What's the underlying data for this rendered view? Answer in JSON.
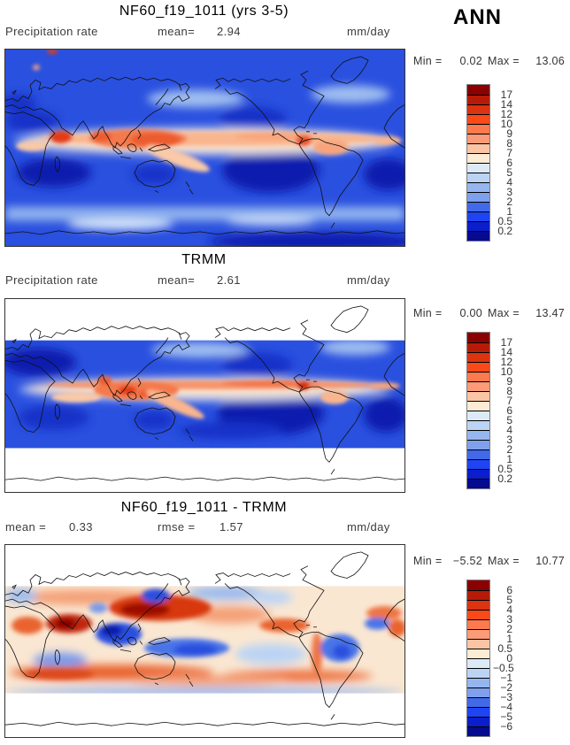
{
  "header": {
    "season": "ANN"
  },
  "panels": {
    "model": {
      "title": "NF60_f19_1011 (yrs 3-5)",
      "var_label": "Precipitation rate",
      "mean_label": "mean=",
      "mean": "2.94",
      "units": "mm/day",
      "min_label": "Min =",
      "min": "0.02",
      "max_label": "Max =",
      "max": "13.06",
      "colorbar": {
        "ticks": [
          "17",
          "14",
          "12",
          "10",
          "9",
          "8",
          "7",
          "6",
          "5",
          "4",
          "3",
          "2",
          "1",
          "0.5",
          "0.2"
        ],
        "colors": [
          "#8B0000",
          "#B71B07",
          "#DC3310",
          "#FB4A1A",
          "#FC7A4D",
          "#FB9B77",
          "#FBC4A4",
          "#FCEBD5",
          "#DCEAF8",
          "#BCD4F4",
          "#96B6EF",
          "#7FA0EC",
          "#4169E8",
          "#1F44F2",
          "#0A1ECC",
          "#050A8E"
        ]
      }
    },
    "obs": {
      "title": "TRMM",
      "var_label": "Precipitation rate",
      "mean_label": "mean=",
      "mean": "2.61",
      "units": "mm/day",
      "min_label": "Min =",
      "min": "0.00",
      "max_label": "Max =",
      "max": "13.47",
      "colorbar": {
        "ticks": [
          "17",
          "14",
          "12",
          "10",
          "9",
          "8",
          "7",
          "6",
          "5",
          "4",
          "3",
          "2",
          "1",
          "0.5",
          "0.2"
        ],
        "colors": [
          "#8B0000",
          "#B71B07",
          "#DC3310",
          "#FB4A1A",
          "#FC7A4D",
          "#FB9B77",
          "#FBC4A4",
          "#FCEBD5",
          "#DCEAF8",
          "#BCD4F4",
          "#96B6EF",
          "#7FA0EC",
          "#4169E8",
          "#1F44F2",
          "#0A1ECC",
          "#050A8E"
        ]
      }
    },
    "diff": {
      "title": "NF60_f19_1011 - TRMM",
      "mean_label": "mean =",
      "mean": "0.33",
      "rmse_label": "rmse =",
      "rmse": "1.57",
      "units": "mm/day",
      "min_label": "Min =",
      "min": "−5.52",
      "max_label": "Max =",
      "max": "10.77",
      "colorbar": {
        "ticks": [
          "6",
          "5",
          "4",
          "3",
          "2",
          "1",
          "0.5",
          "0",
          "−0.5",
          "−1",
          "−2",
          "−3",
          "−4",
          "−5",
          "−6"
        ],
        "colors": [
          "#8B0000",
          "#B71B07",
          "#DC3310",
          "#FB4A1A",
          "#FC7A4D",
          "#FB9B77",
          "#FBC4A4",
          "#FCEBD5",
          "#DCEAF8",
          "#BCD4F4",
          "#96B6EF",
          "#7FA0EC",
          "#4169E8",
          "#1F44F2",
          "#0A1ECC",
          "#050A8E"
        ]
      }
    }
  },
  "chart_data": [
    {
      "type": "heatmap",
      "title": "NF60_f19_1011 (yrs 3-5)",
      "variable": "Precipitation rate",
      "season": "ANN",
      "units": "mm/day",
      "projection": "global equirectangular, 0–360E, 90S–90N",
      "stats": {
        "mean": 2.94,
        "min": 0.02,
        "max": 13.06
      },
      "contour_levels": [
        0.2,
        0.5,
        1,
        2,
        3,
        4,
        5,
        6,
        7,
        8,
        9,
        10,
        12,
        14,
        17
      ],
      "palette_top_to_bottom": [
        "#8B0000",
        "#B71B07",
        "#DC3310",
        "#FB4A1A",
        "#FC7A4D",
        "#FB9B77",
        "#FBC4A4",
        "#FCEBD5",
        "#DCEAF8",
        "#BCD4F4",
        "#96B6EF",
        "#7FA0EC",
        "#4169E8",
        "#1F44F2",
        "#0A1ECC",
        "#050A8E"
      ],
      "features": [
        "high-rain ITCZ band across tropical Indian Ocean and Pacific with maxima over Arabian Sea, Maritime Continent warm pool and NW South America",
        "dry subtropical highs (dark blue) in SE Pacific, S Atlantic and S Indian Ocean",
        "light mid-latitude storm-track bands"
      ]
    },
    {
      "type": "heatmap",
      "title": "TRMM",
      "variable": "Precipitation rate",
      "season": "ANN",
      "units": "mm/day",
      "projection": "global equirectangular; data only ~50N–50S, white outside coverage",
      "stats": {
        "mean": 2.61,
        "min": 0.0,
        "max": 13.47
      },
      "contour_levels": [
        0.2,
        0.5,
        1,
        2,
        3,
        4,
        5,
        6,
        7,
        8,
        9,
        10,
        12,
        14,
        17
      ],
      "palette_top_to_bottom": [
        "#8B0000",
        "#B71B07",
        "#DC3310",
        "#FB4A1A",
        "#FC7A4D",
        "#FB9B77",
        "#FBC4A4",
        "#FCEBD5",
        "#DCEAF8",
        "#BCD4F4",
        "#96B6EF",
        "#7FA0EC",
        "#4169E8",
        "#1F44F2",
        "#0A1ECC",
        "#050A8E"
      ],
      "features": [
        "narrow sharp ITCZ across Pacific",
        "strong maxima over Maritime Continent and Panama Bight",
        "dark-blue dry zones over SE Pacific, S Atlantic and Sahara/Arabia"
      ]
    },
    {
      "type": "heatmap",
      "title": "NF60_f19_1011 - TRMM",
      "variable": "Precipitation rate difference",
      "season": "ANN",
      "units": "mm/day",
      "projection": "global equirectangular; difference only ~50N–50S, white outside coverage",
      "stats": {
        "mean": 0.33,
        "rmse": 1.57,
        "min": -5.52,
        "max": 10.77
      },
      "contour_levels": [
        -6,
        -5,
        -4,
        -3,
        -2,
        -1,
        -0.5,
        0,
        0.5,
        1,
        2,
        3,
        4,
        5,
        6
      ],
      "palette_top_to_bottom": [
        "#8B0000",
        "#B71B07",
        "#DC3310",
        "#FB4A1A",
        "#FC7A4D",
        "#FB9B77",
        "#FBC4A4",
        "#FCEBD5",
        "#DCEAF8",
        "#BCD4F4",
        "#96B6EF",
        "#7FA0EC",
        "#4169E8",
        "#1F44F2",
        "#0A1ECC",
        "#050A8E"
      ],
      "features": [
        "wet bias (dark red) over Arabian Sea/India and NW tropical Pacific",
        "wet bias band in southern subtropics",
        "dry bias (blue) over Maritime Continent, SPCZ, Amazon/Brazil and equatorial Atlantic"
      ]
    }
  ]
}
